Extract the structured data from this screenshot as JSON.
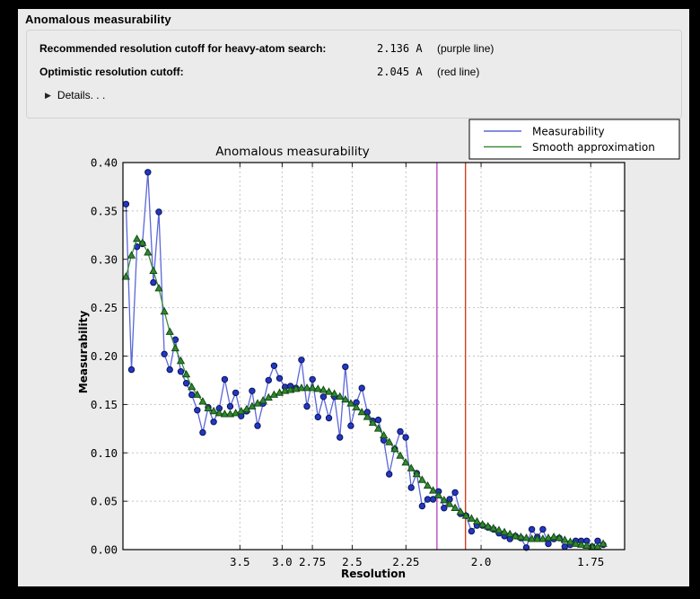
{
  "window": {
    "title": "Anomalous measurability",
    "background": "#000000",
    "panel_bg": "#ebebeb"
  },
  "header": {
    "rows": [
      {
        "label": "Recommended resolution cutoff for heavy-atom search:",
        "value": "2.136 A",
        "note": "(purple line)"
      },
      {
        "label": "Optimistic resolution cutoff:",
        "value": "2.045 A",
        "note": "(red line)"
      }
    ],
    "details": {
      "icon": "disclosure-triangle",
      "glyph": "▶",
      "label": "Details. . ."
    }
  },
  "chart_data": {
    "type": "line",
    "title": "Anomalous measurability",
    "xlabel": "Resolution",
    "ylabel": "Measurability",
    "grid": "dashed",
    "x_axis": {
      "scale": "inverse_d_squared",
      "left_s": 0.0,
      "right_s": 0.3502,
      "ticks": [
        {
          "label": "3.5",
          "d": 3.5
        },
        {
          "label": "3.0",
          "d": 3.0
        },
        {
          "label": "2.75",
          "d": 2.75
        },
        {
          "label": "2.5",
          "d": 2.5
        },
        {
          "label": "2.25",
          "d": 2.25
        },
        {
          "label": "2.0",
          "d": 2.0
        },
        {
          "label": "1.75",
          "d": 1.75
        }
      ]
    },
    "y_axis": {
      "min": 0.0,
      "max": 0.4,
      "tick_step": 0.05
    },
    "points_s_start": 0.0021,
    "points_s_step": 0.003829,
    "n_points": 88,
    "resolution_range_A": {
      "first_point": 21.8,
      "last_point": 1.73
    },
    "series": [
      {
        "id": "measurability",
        "name": "Measurability",
        "marker": "circle",
        "line_color": "#5b67d8",
        "color": "#2138c4",
        "edge_color": "#0d1257",
        "values": [
          0.357,
          0.186,
          0.313,
          0.316,
          0.39,
          0.276,
          0.349,
          0.202,
          0.186,
          0.217,
          0.184,
          0.172,
          0.16,
          0.144,
          0.121,
          0.147,
          0.132,
          0.146,
          0.176,
          0.148,
          0.162,
          0.138,
          0.143,
          0.164,
          0.128,
          0.151,
          0.175,
          0.19,
          0.177,
          0.168,
          0.169,
          0.167,
          0.196,
          0.148,
          0.176,
          0.137,
          0.158,
          0.136,
          0.158,
          0.116,
          0.189,
          0.128,
          0.152,
          0.167,
          0.142,
          0.133,
          0.134,
          0.113,
          0.078,
          0.104,
          0.122,
          0.116,
          0.064,
          0.079,
          0.045,
          0.052,
          0.052,
          0.06,
          0.043,
          0.052,
          0.059,
          0.037,
          0.035,
          0.019,
          0.025,
          0.025,
          0.023,
          0.021,
          0.017,
          0.014,
          0.011,
          0.014,
          0.012,
          0.002,
          0.021,
          0.013,
          0.021,
          0.006,
          0.011,
          0.012,
          0.003,
          0.005,
          0.009,
          0.009,
          0.009,
          0.003,
          0.009,
          0.005
        ]
      },
      {
        "id": "smooth",
        "name": "Smooth approximation",
        "marker": "triangle",
        "line_color": "#3c8c3c",
        "color": "#2e8b2e",
        "edge_color": "#174917",
        "values": [
          0.282,
          0.304,
          0.321,
          0.317,
          0.307,
          0.288,
          0.27,
          0.246,
          0.225,
          0.208,
          0.195,
          0.181,
          0.168,
          0.16,
          0.153,
          0.146,
          0.143,
          0.141,
          0.14,
          0.14,
          0.141,
          0.143,
          0.145,
          0.148,
          0.151,
          0.154,
          0.157,
          0.16,
          0.162,
          0.164,
          0.165,
          0.166,
          0.167,
          0.167,
          0.167,
          0.166,
          0.165,
          0.163,
          0.161,
          0.158,
          0.155,
          0.151,
          0.147,
          0.142,
          0.137,
          0.131,
          0.125,
          0.118,
          0.111,
          0.104,
          0.097,
          0.09,
          0.084,
          0.078,
          0.072,
          0.066,
          0.061,
          0.056,
          0.051,
          0.047,
          0.043,
          0.039,
          0.035,
          0.032,
          0.029,
          0.026,
          0.024,
          0.022,
          0.02,
          0.018,
          0.016,
          0.014,
          0.013,
          0.012,
          0.011,
          0.011,
          0.011,
          0.012,
          0.013,
          0.012,
          0.01,
          0.008,
          0.006,
          0.005,
          0.004,
          0.003,
          0.003,
          0.006
        ]
      }
    ],
    "vlines": [
      {
        "name": "purple-cutoff-line",
        "resolution_A": 2.136,
        "color": "#c14ac6",
        "label": "purple line"
      },
      {
        "name": "red-cutoff-line",
        "resolution_A": 2.045,
        "color": "#cf421d",
        "label": "red line"
      }
    ],
    "legend": {
      "position": "top-right",
      "entries": [
        "Measurability",
        "Smooth approximation"
      ]
    },
    "colors": {
      "plot_bg": "#ffffff",
      "grid": "#c3c3c3",
      "frame": "#000000"
    }
  }
}
